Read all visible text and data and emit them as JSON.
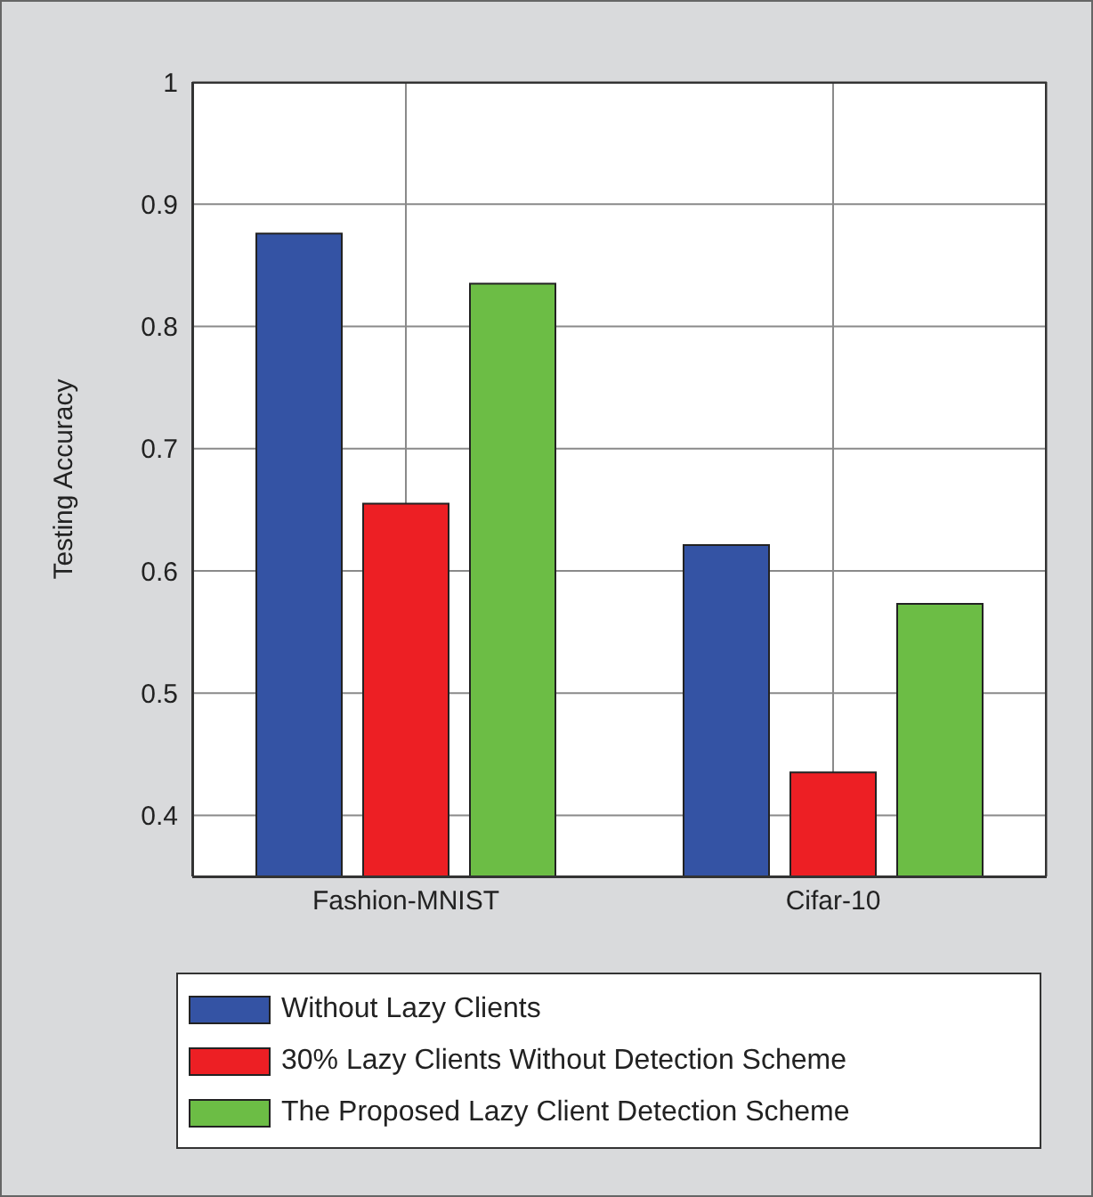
{
  "chart_data": {
    "type": "bar",
    "ylabel": "Testing Accuracy",
    "categories": [
      "Fashion-MNIST",
      "Cifar-10"
    ],
    "series": [
      {
        "name": "Without Lazy Clients",
        "color": "#3453a4",
        "values": [
          0.876,
          0.621
        ]
      },
      {
        "name": "30% Lazy Clients Without Detection Scheme",
        "color": "#ed1f24",
        "values": [
          0.655,
          0.435
        ]
      },
      {
        "name": "The Proposed Lazy Client Detection Scheme",
        "color": "#6cbd45",
        "values": [
          0.835,
          0.573
        ]
      }
    ],
    "ylim": [
      0.35,
      1
    ],
    "yticks": [
      0.4,
      0.5,
      0.6,
      0.7,
      0.8,
      0.9,
      1
    ],
    "grid": true,
    "legend": "bottom"
  }
}
